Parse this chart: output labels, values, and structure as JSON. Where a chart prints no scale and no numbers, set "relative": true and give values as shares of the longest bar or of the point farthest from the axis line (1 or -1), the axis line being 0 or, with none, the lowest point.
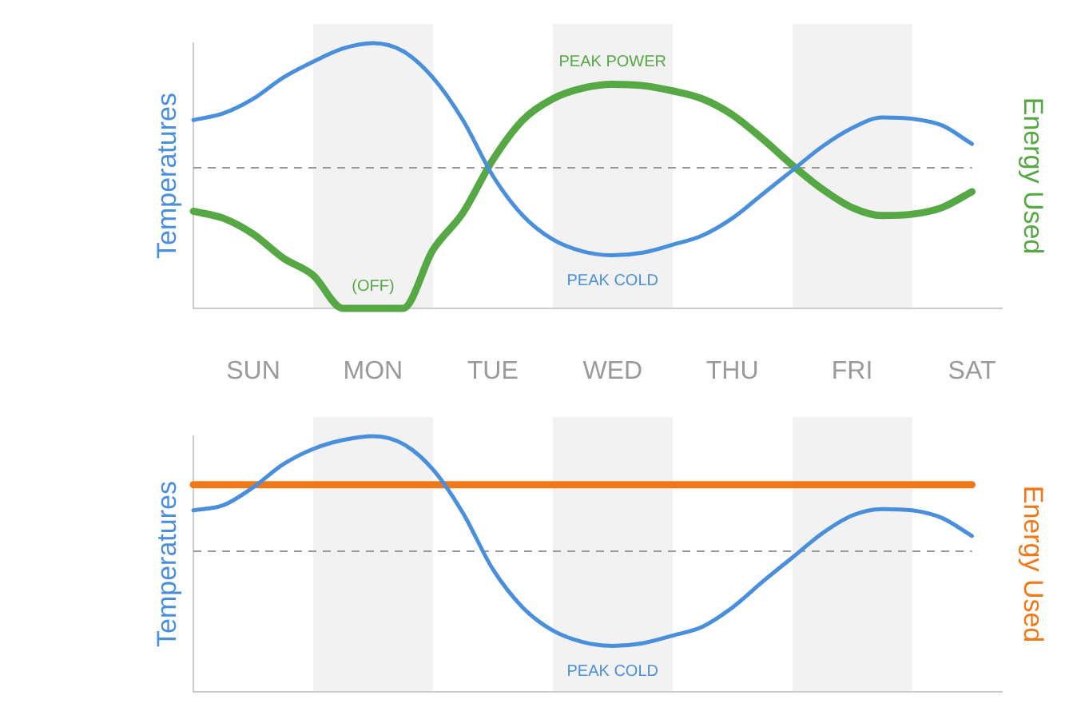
{
  "chart_data": [
    {
      "type": "line",
      "relative": true,
      "ylabel": "Temperatures",
      "y2label": "Energy Used",
      "categories": [
        null,
        null,
        "SUN",
        null,
        null,
        null,
        "MON",
        null,
        null,
        null,
        "TUE",
        null,
        null,
        null,
        "WED",
        null,
        null,
        null,
        "THU",
        null,
        null,
        null,
        "FRI",
        null,
        null,
        null,
        "SAT",
        null
      ],
      "series": [
        {
          "color": "#4a8fdb",
          "values": [
            0.71,
            0.735,
            0.79,
            0.87,
            0.93,
            0.98,
            1,
            0.97,
            0.87,
            0.71,
            0.5,
            0.35,
            0.26,
            0.215,
            0.2,
            0.21,
            0.24,
            0.275,
            0.34,
            0.43,
            0.52,
            0.61,
            0.68,
            0.72,
            0.715,
            0.69,
            0.62,
            null
          ]
        },
        {
          "color": "#55a844",
          "values": [
            0.366,
            0.34,
            0.28,
            0.19,
            0.125,
            0,
            0,
            0,
            0.22,
            0.36,
            0.56,
            0.71,
            0.79,
            0.83,
            0.845,
            0.84,
            0.82,
            0.79,
            0.73,
            0.64,
            0.54,
            0.45,
            0.38,
            0.35,
            0.355,
            0.38,
            0.44,
            null
          ]
        }
      ],
      "ref_lines": [
        {
          "axis": "y",
          "value": 0.53,
          "color": "#999999",
          "line_style": "dashed"
        }
      ],
      "annotations": [
        {
          "text": "PEAK POWER",
          "x": "WED",
          "y": 0.845
        },
        {
          "text": "PEAK COLD",
          "x": "WED",
          "y": 0.2
        },
        {
          "text": "(OFF)",
          "x": "MON",
          "y": 0
        }
      ]
    },
    {
      "type": "line",
      "relative": true,
      "ylabel": "Temperatures",
      "y2label": "Energy Used",
      "tick_labels": false,
      "categories": [
        null,
        null,
        "SUN",
        null,
        null,
        null,
        "MON",
        null,
        null,
        null,
        "TUE",
        null,
        null,
        null,
        "WED",
        null,
        null,
        null,
        "THU",
        null,
        null,
        null,
        "FRI",
        null,
        null,
        null,
        "SAT",
        null
      ],
      "series": [
        {
          "color": "#4a8fdb",
          "values": [
            0.71,
            0.73,
            0.8,
            0.89,
            0.95,
            0.985,
            1,
            0.97,
            0.87,
            0.7,
            0.48,
            0.33,
            0.24,
            0.195,
            0.18,
            0.19,
            0.22,
            0.255,
            0.33,
            0.43,
            0.525,
            0.62,
            0.69,
            0.715,
            0.71,
            0.68,
            0.61,
            null
          ]
        },
        {
          "color": "#f07818",
          "values": [
            0.81,
            0.81,
            0.81,
            0.81,
            0.81,
            0.81,
            0.81,
            0.81,
            0.81,
            0.81,
            0.81,
            0.81,
            0.81,
            0.81,
            0.81,
            0.81,
            0.81,
            0.81,
            0.81,
            0.81,
            0.81,
            0.81,
            0.81,
            0.81,
            0.81,
            0.81,
            0.81,
            null
          ]
        }
      ],
      "ref_lines": [
        {
          "axis": "y",
          "value": 0.55,
          "color": "#999999",
          "line_style": "dashed"
        }
      ],
      "annotations": [
        {
          "text": "PEAK COLD",
          "x": "WED",
          "y": 0.18
        }
      ]
    }
  ]
}
